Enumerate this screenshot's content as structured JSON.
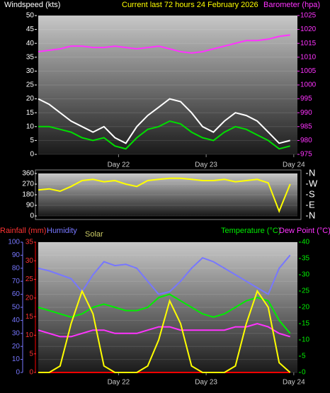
{
  "chart_data": [
    {
      "type": "line",
      "y_label": "Windspeed (kts)",
      "title": "Current last 72 hours 24 February 2026",
      "y2_label": "Barometer (hpa)",
      "x": [
        0,
        3,
        6,
        9,
        12,
        15,
        18,
        21,
        24,
        27,
        30,
        33,
        36,
        39,
        42,
        45,
        48,
        51,
        54,
        57,
        60,
        63,
        66,
        69
      ],
      "xlim": [
        0,
        71
      ],
      "xticks": [
        {
          "value": 22,
          "label": "Day 22"
        },
        {
          "value": 46,
          "label": "Day 23"
        },
        {
          "value": 70,
          "label": "Day 24"
        }
      ],
      "ylim": [
        0,
        50
      ],
      "yticks": [
        0,
        5,
        10,
        15,
        20,
        25,
        30,
        35,
        40,
        45,
        50
      ],
      "y2lim": [
        975,
        1025
      ],
      "y2ticks": [
        975,
        980,
        985,
        990,
        995,
        1000,
        1005,
        1010,
        1015,
        1020,
        1025
      ],
      "grid": true,
      "series": [
        {
          "color": "#ffffff",
          "axis": "y",
          "values": [
            20,
            18,
            15,
            12,
            10,
            8,
            10,
            6,
            4,
            10,
            14,
            17,
            20,
            19,
            15,
            10,
            8,
            12,
            15,
            14,
            12,
            8,
            4,
            5
          ]
        },
        {
          "color": "#00dd00",
          "axis": "y",
          "values": [
            10,
            10,
            9,
            8,
            6,
            5,
            6,
            3,
            2,
            6,
            9,
            10,
            12,
            11,
            8,
            6,
            5,
            8,
            10,
            9,
            7,
            5,
            2,
            3
          ]
        },
        {
          "color": "#ff33ff",
          "axis": "y2",
          "values": [
            1012,
            1012.5,
            1013,
            1014,
            1014,
            1013.5,
            1013.5,
            1014,
            1013.5,
            1013,
            1013.5,
            1014,
            1013,
            1012,
            1011.5,
            1012,
            1013,
            1014,
            1015,
            1016,
            1016,
            1016.5,
            1017.5,
            1018
          ]
        }
      ]
    },
    {
      "type": "line",
      "x": [
        0,
        3,
        6,
        9,
        12,
        15,
        18,
        21,
        24,
        27,
        30,
        33,
        36,
        39,
        42,
        45,
        48,
        51,
        54,
        57,
        60,
        63,
        66,
        69
      ],
      "xlim": [
        0,
        71
      ],
      "ylim": [
        0,
        360
      ],
      "yticks": [
        0,
        90,
        180,
        270,
        360
      ],
      "y2lim": [
        0,
        360
      ],
      "y2ticks": [
        {
          "value": 360,
          "label": "N"
        },
        {
          "value": 270,
          "label": "W"
        },
        {
          "value": 180,
          "label": "S"
        },
        {
          "value": 90,
          "label": "E"
        },
        {
          "value": 0,
          "label": "N"
        }
      ],
      "grid": true,
      "series": [
        {
          "color": "#ffff00",
          "axis": "y",
          "values": [
            220,
            230,
            210,
            250,
            300,
            310,
            290,
            300,
            270,
            250,
            300,
            310,
            320,
            320,
            310,
            300,
            300,
            310,
            290,
            300,
            310,
            280,
            40,
            270
          ]
        }
      ]
    },
    {
      "type": "line",
      "y3_label": "Rainfall (mm)",
      "y_label": "Humidity",
      "solar_label": "Solar",
      "y2_label": "Temperature (°C)",
      "dew_label": "Dew Point (°C)",
      "x": [
        0,
        3,
        6,
        9,
        12,
        15,
        18,
        21,
        24,
        27,
        30,
        33,
        36,
        39,
        42,
        45,
        48,
        51,
        54,
        57,
        60,
        63,
        66,
        69
      ],
      "xlim": [
        0,
        71
      ],
      "xticks": [
        {
          "value": 22,
          "label": "Day 22"
        },
        {
          "value": 46,
          "label": "Day 23"
        },
        {
          "value": 70,
          "label": "Day 24"
        }
      ],
      "ylim": [
        0,
        100
      ],
      "yticks": [
        0,
        10,
        20,
        30,
        40,
        50,
        60,
        70,
        80,
        90,
        100
      ],
      "y3lim": [
        0,
        35
      ],
      "y3ticks": [
        0,
        5,
        10,
        15,
        20,
        25,
        30,
        35
      ],
      "y2lim": [
        0,
        40
      ],
      "y2ticks": [
        0,
        5,
        10,
        15,
        20,
        25,
        30,
        35,
        40
      ],
      "grid": true,
      "series": [
        {
          "color": "#ff0000",
          "axis": "y3",
          "values": [
            0,
            0,
            0,
            0,
            0,
            0,
            0,
            0,
            0,
            0,
            0,
            0,
            0,
            0,
            0,
            0,
            0,
            0,
            0,
            0,
            0,
            0,
            0,
            0
          ]
        },
        {
          "color": "#7777ff",
          "axis": "y",
          "values": [
            80,
            78,
            75,
            72,
            62,
            75,
            85,
            82,
            83,
            80,
            70,
            60,
            62,
            70,
            80,
            88,
            85,
            80,
            75,
            70,
            65,
            60,
            80,
            90
          ]
        },
        {
          "color": "#00ee00",
          "axis": "y2",
          "values": [
            20,
            19,
            18,
            17,
            18,
            20,
            21,
            20,
            19,
            19,
            20,
            23,
            24,
            22,
            20,
            18,
            17,
            18,
            20,
            22,
            23,
            22,
            16,
            12
          ]
        },
        {
          "color": "#ff33ff",
          "axis": "y2",
          "values": [
            13,
            12,
            11,
            11,
            12,
            13,
            13,
            12,
            12,
            12,
            13,
            14,
            14,
            13,
            13,
            13,
            13,
            13,
            14,
            14,
            15,
            14,
            12,
            11
          ]
        },
        {
          "color": "#ffff00",
          "axis": "y2",
          "values": [
            0,
            0,
            2,
            15,
            25,
            18,
            2,
            0,
            0,
            0,
            2,
            10,
            22,
            15,
            2,
            0,
            0,
            0,
            2,
            15,
            25,
            20,
            3,
            0
          ]
        }
      ]
    }
  ]
}
